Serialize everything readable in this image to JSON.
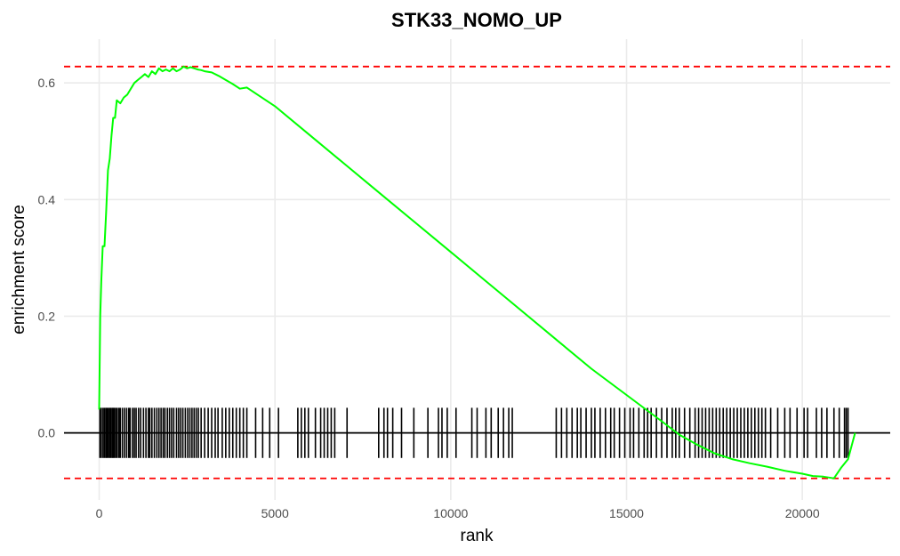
{
  "chart_data": {
    "type": "line",
    "title": "STK33_NOMO_UP",
    "xlabel": "rank",
    "ylabel": "enrichment score",
    "xlim": [
      -1000,
      22500
    ],
    "ylim": [
      -0.115,
      0.675
    ],
    "x_ticks": [
      {
        "value": 0,
        "label": "0"
      },
      {
        "value": 5000,
        "label": "5000"
      },
      {
        "value": 10000,
        "label": "10000"
      },
      {
        "value": 15000,
        "label": "15000"
      },
      {
        "value": 20000,
        "label": "20000"
      }
    ],
    "y_ticks": [
      {
        "value": 0.0,
        "label": "0.0"
      },
      {
        "value": 0.2,
        "label": "0.2"
      },
      {
        "value": 0.4,
        "label": "0.4"
      },
      {
        "value": 0.6,
        "label": "0.6"
      }
    ],
    "grid": true,
    "colors": {
      "curve": "#00ff00",
      "limits": "#ff0000",
      "hits": "#000000",
      "zero_line": "#000000"
    },
    "reference_lines": [
      {
        "name": "max_es",
        "y": 0.628,
        "style": "dashed",
        "color": "#ff0000"
      },
      {
        "name": "min_es",
        "y": -0.078,
        "style": "dashed",
        "color": "#ff0000"
      },
      {
        "name": "zero",
        "y": 0.0,
        "style": "solid",
        "color": "#000000"
      }
    ],
    "hit_band": [
      -0.043,
      0.043
    ],
    "series": [
      {
        "x": [
          0,
          30,
          60,
          100,
          150,
          200,
          250,
          300,
          350,
          400,
          450,
          500,
          600,
          700,
          800,
          900,
          1000,
          1100,
          1200,
          1300,
          1400,
          1500,
          1600,
          1700,
          1800,
          1900,
          2000,
          2100,
          2200,
          2300,
          2400,
          2500,
          2600,
          2700,
          2800,
          2900,
          3000,
          3200,
          3400,
          3600,
          3800,
          4000,
          4200,
          4500,
          5000,
          6000,
          7000,
          8000,
          9000,
          10000,
          11000,
          12000,
          13000,
          14000,
          15000,
          16000,
          16500,
          17000,
          17500,
          18000,
          18500,
          19000,
          19500,
          20000,
          20300,
          20600,
          20900,
          21100,
          21300,
          21500
        ],
        "values": [
          0.04,
          0.2,
          0.26,
          0.32,
          0.32,
          0.38,
          0.45,
          0.47,
          0.51,
          0.54,
          0.54,
          0.57,
          0.565,
          0.575,
          0.58,
          0.59,
          0.6,
          0.605,
          0.61,
          0.615,
          0.61,
          0.62,
          0.615,
          0.625,
          0.62,
          0.623,
          0.62,
          0.625,
          0.62,
          0.623,
          0.628,
          0.625,
          0.627,
          0.625,
          0.623,
          0.622,
          0.62,
          0.618,
          0.612,
          0.605,
          0.598,
          0.59,
          0.592,
          0.58,
          0.56,
          0.51,
          0.46,
          0.41,
          0.36,
          0.31,
          0.26,
          0.21,
          0.16,
          0.11,
          0.065,
          0.02,
          -0.003,
          -0.02,
          -0.035,
          -0.045,
          -0.052,
          -0.058,
          -0.065,
          -0.07,
          -0.074,
          -0.075,
          -0.078,
          -0.06,
          -0.045,
          0.0
        ]
      }
    ],
    "hits": [
      20,
      60,
      110,
      150,
      190,
      220,
      260,
      300,
      330,
      370,
      400,
      430,
      470,
      510,
      560,
      600,
      660,
      720,
      780,
      840,
      880,
      950,
      1000,
      1050,
      1120,
      1180,
      1260,
      1330,
      1400,
      1440,
      1500,
      1570,
      1640,
      1700,
      1760,
      1820,
      1870,
      1940,
      2000,
      2060,
      2120,
      2200,
      2260,
      2320,
      2380,
      2450,
      2520,
      2580,
      2640,
      2700,
      2760,
      2820,
      2900,
      3000,
      3100,
      3200,
      3300,
      3380,
      3500,
      3600,
      3700,
      3800,
      3900,
      4000,
      4100,
      4200,
      4450,
      4650,
      4850,
      5100,
      5650,
      5750,
      5850,
      5950,
      6150,
      6300,
      6400,
      6500,
      6600,
      6700,
      7050,
      7950,
      8100,
      8200,
      8350,
      8600,
      8950,
      9350,
      9650,
      9750,
      9900,
      10150,
      10600,
      10750,
      11000,
      11150,
      11350,
      11500,
      11650,
      11750,
      13000,
      13150,
      13300,
      13450,
      13600,
      13700,
      13850,
      14000,
      14100,
      14250,
      14400,
      14550,
      14650,
      14800,
      14950,
      15100,
      15200,
      15350,
      15500,
      15600,
      15700,
      15850,
      16000,
      16150,
      16300,
      16400,
      16500,
      16650,
      16800,
      16950,
      17050,
      17150,
      17250,
      17350,
      17450,
      17550,
      17650,
      17750,
      17850,
      17950,
      18050,
      18150,
      18250,
      18350,
      18450,
      18550,
      18650,
      18750,
      18850,
      18950,
      19100,
      19300,
      19500,
      19650,
      19850,
      20050,
      20150,
      20400,
      20550,
      20700,
      20900,
      21050,
      21200,
      21250,
      21300
    ]
  }
}
